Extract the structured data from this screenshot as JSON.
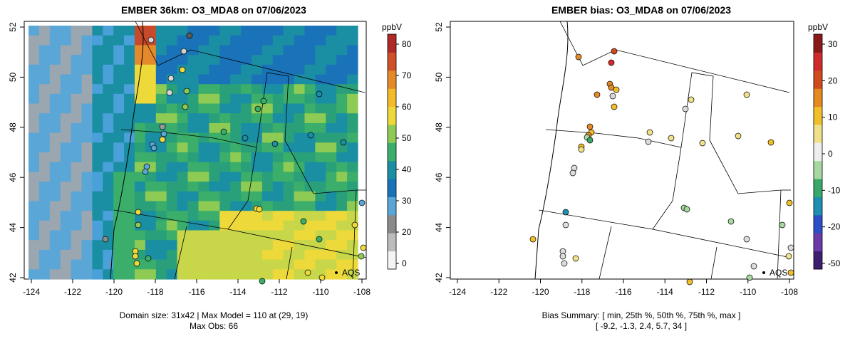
{
  "left_panel": {
    "title": "EMBER 36km: O3_MDA8 on 07/06/2023",
    "caption_line1": "Domain size: 31x42 | Max Model = 110 at (29, 19)",
    "caption_line2": "Max Obs: 66",
    "colorbar_unit": "ppbV",
    "colorbar_ticks": [
      "80",
      "70",
      "60",
      "50",
      "40",
      "30",
      "20",
      "0"
    ],
    "colorbar_colors": [
      "#f4f4f4",
      "#bcbcbc",
      "#8a8a8a",
      "#5aa6d6",
      "#1a73b8",
      "#1a8fa3",
      "#3aae6a",
      "#8ecb54",
      "#eed93a",
      "#f2bb2a",
      "#e48a2a",
      "#d0502a",
      "#b02a2a"
    ],
    "marker_label": "AQS"
  },
  "right_panel": {
    "title": "EMBER bias: O3_MDA8 on 07/06/2023",
    "caption_line1": "Bias Summary: [ min, 25th %, 50th %, 75th %, max ]",
    "caption_line2": "[ -9.2,   -1.3,   2.4,   5.7,   34 ]",
    "colorbar_unit": "ppbV",
    "colorbar_ticks": [
      "30",
      "20",
      "10",
      "0",
      "-10",
      "-20",
      "-50"
    ],
    "colorbar_colors": [
      "#3c1f6e",
      "#6a3aa8",
      "#2a4fc8",
      "#1e8fb0",
      "#3aa86a",
      "#a6d8a0",
      "#eeeeee",
      "#f0e08a",
      "#f0c02a",
      "#e48a1e",
      "#d04a1e",
      "#d02a2a",
      "#8a1a1a"
    ],
    "marker_label": "AQS"
  },
  "axes": {
    "x_ticks": [
      "-124",
      "-122",
      "-120",
      "-118",
      "-116",
      "-114",
      "-112",
      "-110",
      "-108"
    ],
    "y_ticks": [
      "42",
      "44",
      "46",
      "48",
      "50",
      "52"
    ]
  }
}
